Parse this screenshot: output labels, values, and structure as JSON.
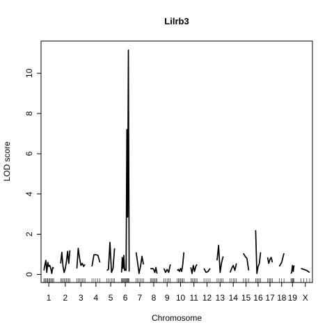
{
  "chart_data": {
    "type": "line",
    "title": "Lilrb3",
    "xlabel": "Chromosome",
    "ylabel": "LOD score",
    "ylim": [
      -0.4,
      11.6
    ],
    "y_ticks": [
      0,
      2,
      4,
      6,
      8,
      10
    ],
    "grid": false,
    "legend": "none",
    "line_color": "#000000",
    "chromosomes": [
      {
        "label": "1",
        "length": 195,
        "lod": [
          0.2,
          0.45,
          0.7,
          0.1,
          0.6,
          0.4,
          0.45,
          0.3,
          0.05,
          0.35,
          0.3
        ]
      },
      {
        "label": "2",
        "length": 182,
        "lod": [
          0.55,
          1.1,
          0.4,
          0.1,
          0.3,
          0.65,
          1.15,
          0.55,
          1.2
        ]
      },
      {
        "label": "3",
        "length": 160,
        "lod": [
          0.3,
          1.3,
          0.8,
          0.45,
          0.55,
          0.4,
          0.5
        ]
      },
      {
        "label": "4",
        "length": 157,
        "lod": [
          0.4,
          0.98,
          0.98,
          0.95,
          0.6
        ]
      },
      {
        "label": "5",
        "length": 152,
        "lod": [
          0.2,
          0.25,
          1.6,
          0.1,
          0.3,
          1.3
        ]
      },
      {
        "label": "6",
        "length": 150,
        "lod": [
          0.1,
          0.85,
          0.3,
          0.95,
          0.2,
          0.25,
          0.2,
          7.2,
          2.85,
          11.15,
          0.15
        ]
      },
      {
        "label": "7",
        "length": 145,
        "lod": [
          1.1,
          0.6,
          0.05,
          0.4,
          0.9,
          0.5
        ]
      },
      {
        "label": "8",
        "length": 130,
        "lod": [
          0.3,
          0.28,
          0.3,
          0.25,
          0.1,
          0.35,
          0.05
        ]
      },
      {
        "label": "9",
        "length": 125,
        "lod": [
          0.3,
          0.1,
          0.25,
          0.1,
          0.5
        ]
      },
      {
        "label": "10",
        "length": 130,
        "lod": [
          0.2,
          0.25,
          0.15,
          0.3,
          0.15,
          0.5,
          1.1
        ]
      },
      {
        "label": "11",
        "length": 122,
        "lod": [
          0.35,
          0.05,
          0.45,
          0.15,
          0.4,
          0.5
        ]
      },
      {
        "label": "12",
        "length": 121,
        "lod": [
          0.3,
          0.1,
          0.15,
          0.3
        ]
      },
      {
        "label": "13",
        "length": 120,
        "lod": [
          0.7,
          1.45,
          0.1,
          0.6,
          0.9
        ]
      },
      {
        "label": "14",
        "length": 125,
        "lod": [
          0.1,
          0.3,
          0.45,
          0.2,
          0.55
        ]
      },
      {
        "label": "15",
        "length": 104,
        "lod": [
          1.05,
          0.9,
          0.8,
          0.2
        ]
      },
      {
        "label": "16",
        "length": 98,
        "lod": [
          2.2,
          0.05,
          0.4,
          0.55,
          1.1
        ]
      },
      {
        "label": "17",
        "length": 95,
        "lod": [
          0.85,
          0.55,
          0.75,
          0.85,
          0.6
        ]
      },
      {
        "label": "18",
        "length": 91,
        "lod": [
          0.4,
          0.6,
          1.05
        ]
      },
      {
        "label": "19",
        "length": 61,
        "lod": [
          0.05,
          0.1,
          0.45,
          0.15,
          0.45
        ]
      },
      {
        "label": "X",
        "length": 171,
        "lod": [
          0.3,
          0.25,
          0.2,
          0.1
        ]
      }
    ]
  }
}
